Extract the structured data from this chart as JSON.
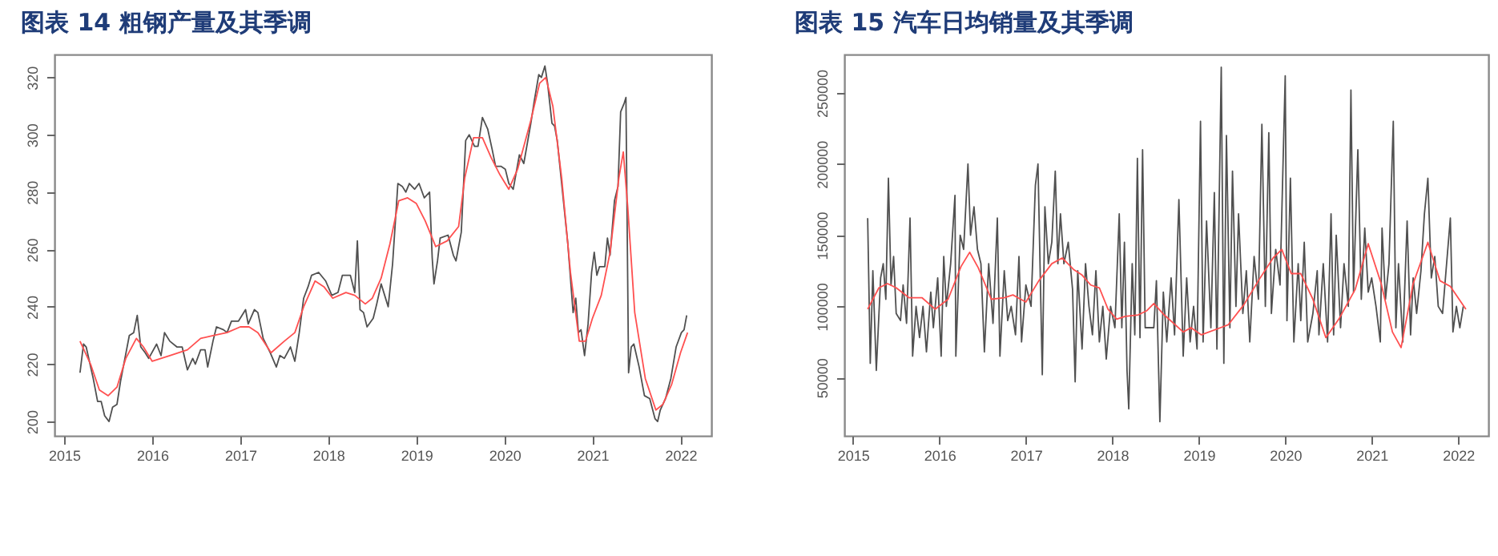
{
  "chart_data": [
    {
      "type": "line",
      "title": "图表 14  粗钢产量及其季调",
      "xlim": [
        2014.89,
        2022.35
      ],
      "xticks": [
        2015,
        2016,
        2017,
        2018,
        2019,
        2020,
        2021,
        2022
      ],
      "ylim": [
        195,
        328
      ],
      "yticks": [
        200,
        220,
        240,
        260,
        280,
        300,
        320
      ],
      "series": [
        {
          "color": "#505050",
          "x": [
            2015.18,
            2015.22,
            2015.25,
            2015.33,
            2015.38,
            2015.42,
            2015.46,
            2015.51,
            2015.55,
            2015.6,
            2015.64,
            2015.69,
            2015.74,
            2015.79,
            2015.83,
            2015.87,
            2015.92,
            2015.96,
            2016.05,
            2016.1,
            2016.14,
            2016.2,
            2016.28,
            2016.34,
            2016.4,
            2016.46,
            2016.49,
            2016.55,
            2016.6,
            2016.63,
            2016.69,
            2016.73,
            2016.81,
            2016.85,
            2016.9,
            2016.98,
            2017.06,
            2017.09,
            2017.16,
            2017.2,
            2017.26,
            2017.34,
            2017.41,
            2017.45,
            2017.5,
            2017.57,
            2017.62,
            2017.67,
            2017.72,
            2017.77,
            2017.81,
            2017.89,
            2017.97,
            2018.04,
            2018.11,
            2018.16,
            2018.25,
            2018.3,
            2018.33,
            2018.36,
            2018.4,
            2018.44,
            2018.51,
            2018.55,
            2018.6,
            2018.64,
            2018.68,
            2018.73,
            2018.79,
            2018.84,
            2018.88,
            2018.92,
            2018.98,
            2019.03,
            2019.09,
            2019.15,
            2019.18,
            2019.2,
            2019.24,
            2019.27,
            2019.36,
            2019.42,
            2019.45,
            2019.51,
            2019.56,
            2019.6,
            2019.66,
            2019.7,
            2019.75,
            2019.81,
            2019.86,
            2019.9,
            2019.96,
            2020.01,
            2020.05,
            2020.1,
            2020.17,
            2020.22,
            2020.3,
            2020.34,
            2020.39,
            2020.42,
            2020.46,
            2020.49,
            2020.54,
            2020.57,
            2020.6,
            2020.66,
            2020.72,
            2020.78,
            2020.81,
            2020.84,
            2020.87,
            2020.91,
            2020.95,
            2020.99,
            2021.02,
            2021.05,
            2021.08,
            2021.14,
            2021.17,
            2021.2,
            2021.25,
            2021.29,
            2021.32,
            2021.36,
            2021.38,
            2021.41,
            2021.44,
            2021.47,
            2021.53,
            2021.59,
            2021.65,
            2021.71,
            2021.74,
            2021.77,
            2021.83,
            2021.89,
            2021.95,
            2022.01,
            2022.04,
            2022.07
          ],
          "values": [
            217,
            227,
            226,
            215,
            207,
            207,
            202,
            200,
            205,
            206,
            214,
            222,
            230,
            231,
            237,
            226,
            224,
            222,
            227,
            223,
            231,
            228,
            226,
            226,
            218,
            222,
            220,
            225,
            225,
            219,
            228,
            233,
            232,
            231,
            235,
            235,
            239,
            234,
            239,
            238,
            229,
            224,
            219,
            223,
            222,
            226,
            221,
            231,
            243,
            247,
            251,
            252,
            249,
            244,
            245,
            251,
            251,
            245,
            263,
            239,
            238,
            233,
            236,
            241,
            248,
            244,
            240,
            255,
            283,
            282,
            280,
            283,
            281,
            283,
            278,
            280,
            257,
            248,
            256,
            264,
            265,
            258,
            256,
            266,
            298,
            300,
            296,
            296,
            306,
            302,
            295,
            289,
            289,
            288,
            283,
            281,
            293,
            290,
            304,
            312,
            321,
            320,
            324,
            318,
            304,
            303,
            298,
            280,
            262,
            238,
            243,
            231,
            232,
            223,
            234,
            252,
            259,
            251,
            254,
            254,
            264,
            258,
            277,
            282,
            308,
            311,
            313,
            217,
            226,
            227,
            219,
            209,
            208,
            201,
            200,
            204,
            208,
            215,
            226,
            231,
            232,
            237
          ]
        },
        {
          "color": "#ff5050",
          "x": [
            2015.18,
            2015.3,
            2015.4,
            2015.5,
            2015.6,
            2015.7,
            2015.82,
            2015.9,
            2016.0,
            2016.2,
            2016.4,
            2016.55,
            2016.7,
            2016.85,
            2017.0,
            2017.1,
            2017.2,
            2017.35,
            2017.5,
            2017.62,
            2017.72,
            2017.85,
            2017.95,
            2018.05,
            2018.2,
            2018.3,
            2018.42,
            2018.5,
            2018.6,
            2018.7,
            2018.8,
            2018.9,
            2019.0,
            2019.1,
            2019.22,
            2019.35,
            2019.48,
            2019.55,
            2019.65,
            2019.75,
            2019.85,
            2019.95,
            2020.05,
            2020.15,
            2020.3,
            2020.4,
            2020.47,
            2020.55,
            2020.65,
            2020.75,
            2020.85,
            2020.92,
            2021.0,
            2021.1,
            2021.2,
            2021.3,
            2021.35,
            2021.4,
            2021.48,
            2021.6,
            2021.72,
            2021.8,
            2021.9,
            2022.0,
            2022.08
          ],
          "values": [
            228,
            220,
            211,
            209,
            212,
            222,
            229,
            226,
            221,
            223,
            225,
            229,
            230,
            231,
            233,
            233,
            231,
            224,
            228,
            231,
            240,
            249,
            247,
            243,
            245,
            244,
            241,
            243,
            250,
            262,
            277,
            278,
            276,
            270,
            261,
            263,
            268,
            285,
            299,
            299,
            292,
            286,
            281,
            288,
            305,
            318,
            320,
            310,
            285,
            252,
            228,
            228,
            236,
            244,
            259,
            285,
            294,
            275,
            238,
            215,
            204,
            206,
            213,
            224,
            231
          ]
        }
      ]
    },
    {
      "type": "line",
      "title": "图表 15  汽车日均销量及其季调",
      "xlim": [
        2014.9,
        2022.35
      ],
      "xticks": [
        2015,
        2016,
        2017,
        2018,
        2019,
        2020,
        2021,
        2022
      ],
      "ylim": [
        9000,
        277000
      ],
      "yticks": [
        50000,
        100000,
        150000,
        200000,
        250000
      ],
      "series": [
        {
          "color": "#404040",
          "x": [
            2015.17,
            2015.2,
            2015.23,
            2015.27,
            2015.32,
            2015.35,
            2015.38,
            2015.41,
            2015.44,
            2015.47,
            2015.5,
            2015.55,
            2015.58,
            2015.62,
            2015.66,
            2015.69,
            2015.73,
            2015.77,
            2015.81,
            2015.85,
            2015.9,
            2015.93,
            2015.98,
            2016.02,
            2016.05,
            2016.08,
            2016.13,
            2016.18,
            2016.19,
            2016.24,
            2016.28,
            2016.33,
            2016.36,
            2016.4,
            2016.44,
            2016.48,
            2016.52,
            2016.57,
            2016.62,
            2016.67,
            2016.7,
            2016.75,
            2016.79,
            2016.83,
            2016.88,
            2016.92,
            2016.95,
            2017.0,
            2017.06,
            2017.11,
            2017.14,
            2017.19,
            2017.22,
            2017.26,
            2017.3,
            2017.34,
            2017.37,
            2017.4,
            2017.44,
            2017.49,
            2017.54,
            2017.57,
            2017.6,
            2017.65,
            2017.69,
            2017.73,
            2017.77,
            2017.81,
            2017.85,
            2017.89,
            2017.93,
            2017.98,
            2018.03,
            2018.08,
            2018.11,
            2018.14,
            2018.17,
            2018.19,
            2018.23,
            2018.26,
            2018.29,
            2018.32,
            2018.35,
            2018.38,
            2018.48,
            2018.51,
            2018.55,
            2018.59,
            2018.63,
            2018.68,
            2018.72,
            2018.77,
            2018.82,
            2018.86,
            2018.9,
            2018.94,
            2018.98,
            2019.02,
            2019.05,
            2019.09,
            2019.14,
            2019.18,
            2019.21,
            2019.26,
            2019.29,
            2019.32,
            2019.36,
            2019.39,
            2019.43,
            2019.46,
            2019.51,
            2019.55,
            2019.59,
            2019.64,
            2019.69,
            2019.73,
            2019.77,
            2019.81,
            2019.84,
            2019.89,
            2019.94,
            2020.0,
            2020.02,
            2020.06,
            2020.1,
            2020.15,
            2020.18,
            2020.22,
            2020.26,
            2020.32,
            2020.37,
            2020.39,
            2020.44,
            2020.49,
            2020.53,
            2020.56,
            2020.59,
            2020.64,
            2020.68,
            2020.73,
            2020.76,
            2020.79,
            2020.84,
            2020.88,
            2020.92,
            2020.96,
            2021.0,
            2021.05,
            2021.1,
            2021.12,
            2021.16,
            2021.2,
            2021.25,
            2021.28,
            2021.31,
            2021.36,
            2021.41,
            2021.45,
            2021.48,
            2021.52,
            2021.57,
            2021.61,
            2021.65,
            2021.69,
            2021.73,
            2021.77,
            2021.82,
            2021.86,
            2021.91,
            2021.94,
            2021.98,
            2022.02,
            2022.06
          ],
          "values": [
            162000,
            60000,
            125000,
            55000,
            120000,
            130000,
            105000,
            190000,
            115000,
            135000,
            95000,
            90000,
            115000,
            88000,
            162000,
            65000,
            100000,
            78000,
            100000,
            68000,
            110000,
            85000,
            120000,
            65000,
            135000,
            100000,
            130000,
            178000,
            65000,
            150000,
            140000,
            200000,
            150000,
            170000,
            140000,
            130000,
            68000,
            130000,
            88000,
            162000,
            65000,
            125000,
            90000,
            100000,
            80000,
            135000,
            75000,
            115000,
            100000,
            185000,
            200000,
            52000,
            170000,
            130000,
            145000,
            195000,
            130000,
            165000,
            130000,
            145000,
            112000,
            47000,
            125000,
            70000,
            130000,
            100000,
            80000,
            125000,
            75000,
            100000,
            63000,
            100000,
            85000,
            165000,
            85000,
            145000,
            55000,
            28000,
            130000,
            80000,
            204000,
            78000,
            210000,
            85000,
            85000,
            118000,
            19000,
            110000,
            75000,
            120000,
            80000,
            175000,
            65000,
            120000,
            75000,
            100000,
            70000,
            230000,
            75000,
            160000,
            85000,
            180000,
            70000,
            268000,
            60000,
            220000,
            85000,
            195000,
            100000,
            165000,
            95000,
            125000,
            75000,
            135000,
            105000,
            228000,
            100000,
            222000,
            95000,
            140000,
            115000,
            262000,
            90000,
            190000,
            75000,
            130000,
            90000,
            145000,
            75000,
            95000,
            125000,
            80000,
            130000,
            75000,
            165000,
            80000,
            150000,
            85000,
            130000,
            100000,
            252000,
            110000,
            210000,
            105000,
            155000,
            110000,
            120000,
            100000,
            75000,
            155000,
            105000,
            130000,
            230000,
            85000,
            130000,
            75000,
            160000,
            80000,
            120000,
            95000,
            125000,
            165000,
            190000,
            120000,
            135000,
            100000,
            95000,
            125000,
            162000,
            82000,
            100000,
            85000,
            100000
          ]
        },
        {
          "color": "#ff5050",
          "x": [
            2015.17,
            2015.3,
            2015.4,
            2015.5,
            2015.65,
            2015.8,
            2015.95,
            2016.1,
            2016.25,
            2016.35,
            2016.45,
            2016.6,
            2016.75,
            2016.85,
            2017.0,
            2017.15,
            2017.3,
            2017.42,
            2017.55,
            2017.65,
            2017.75,
            2017.85,
            2017.95,
            2018.05,
            2018.15,
            2018.3,
            2018.4,
            2018.48,
            2018.6,
            2018.82,
            2018.91,
            2019.03,
            2019.34,
            2019.52,
            2019.7,
            2019.86,
            2019.96,
            2020.07,
            2020.18,
            2020.32,
            2020.47,
            2020.62,
            2020.81,
            2020.96,
            2021.11,
            2021.24,
            2021.34,
            2021.48,
            2021.65,
            2021.79,
            2021.91,
            2022.09
          ],
          "values": [
            98000,
            113000,
            116000,
            113000,
            106000,
            106000,
            98000,
            105000,
            128000,
            138000,
            127000,
            105000,
            106000,
            108000,
            103000,
            118000,
            130000,
            134000,
            126000,
            122000,
            115000,
            113000,
            98000,
            91000,
            93000,
            94000,
            97000,
            102000,
            94000,
            82000,
            85000,
            80000,
            87000,
            101000,
            119000,
            134000,
            140000,
            123000,
            123000,
            105000,
            78000,
            91000,
            112000,
            144000,
            116000,
            82000,
            71000,
            116000,
            145000,
            118000,
            114000,
            98000
          ]
        }
      ]
    }
  ]
}
